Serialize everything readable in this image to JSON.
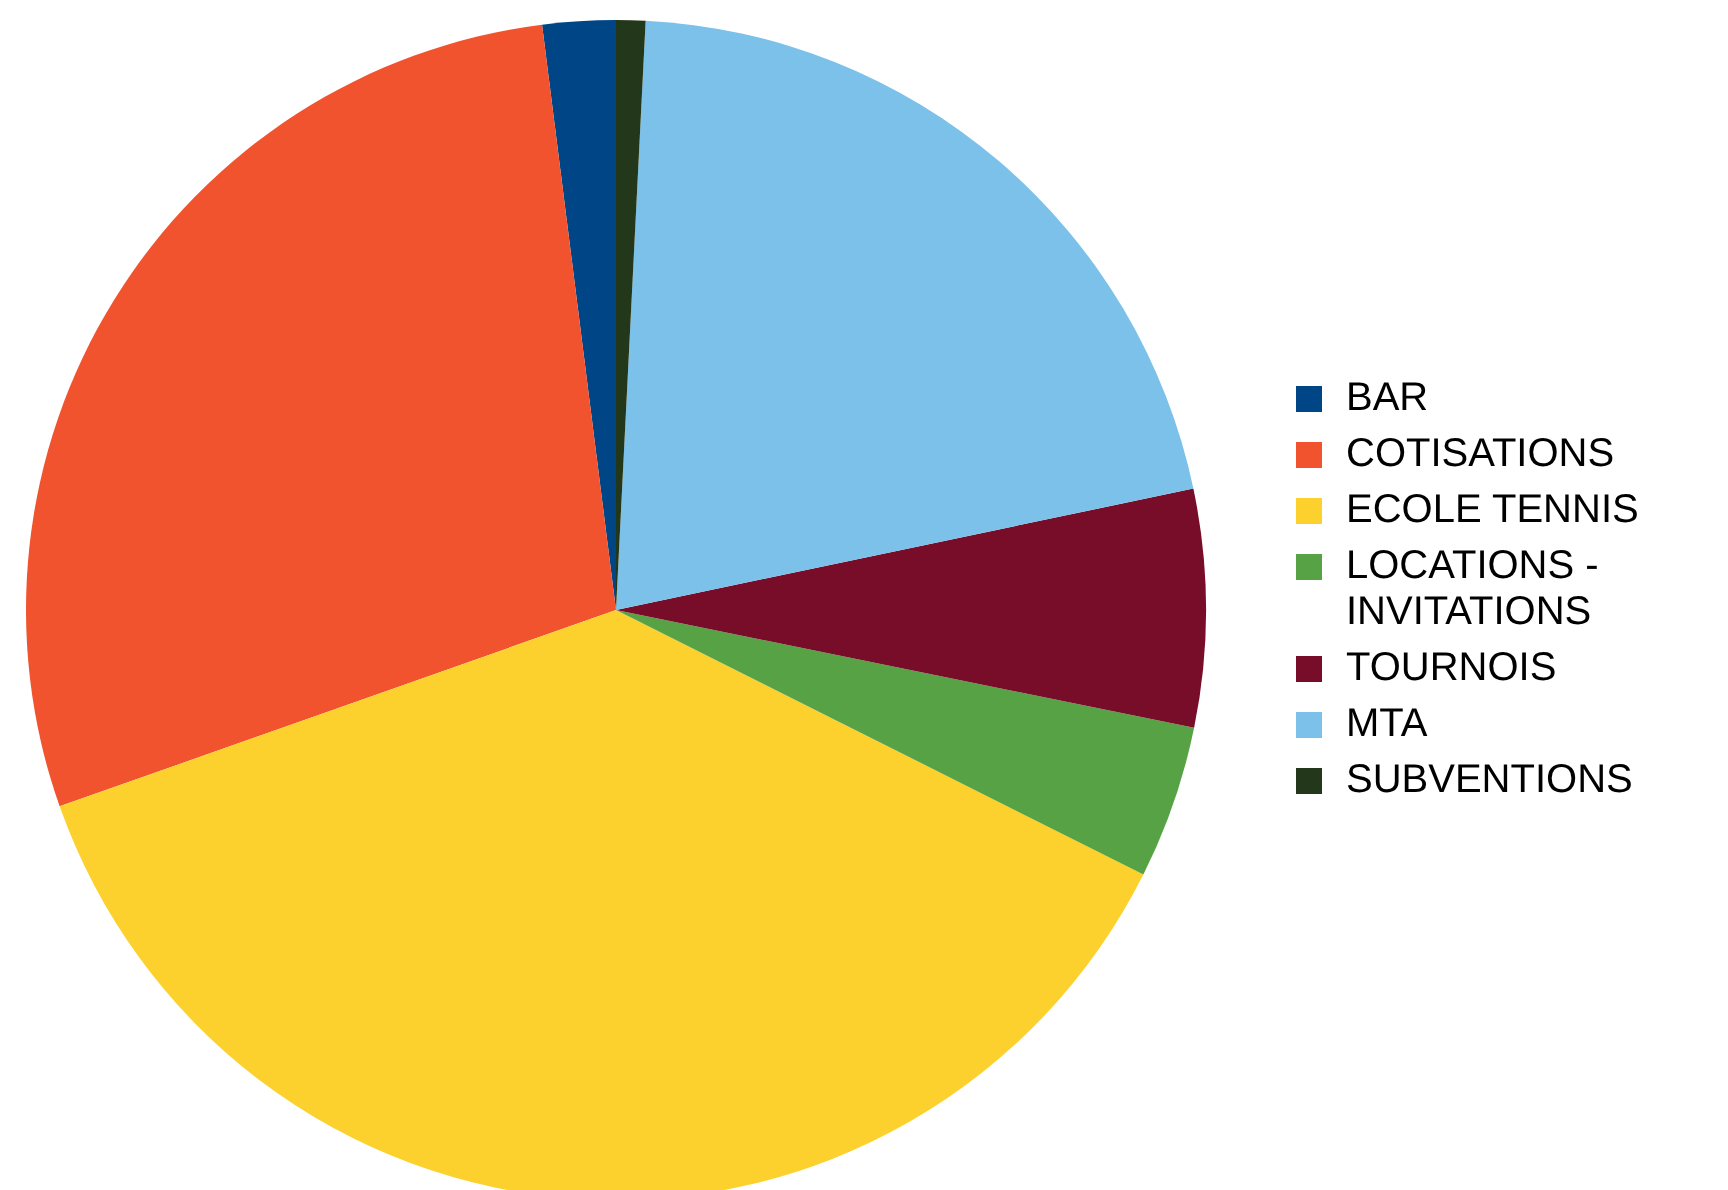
{
  "chart_data": {
    "type": "pie",
    "categories": [
      "BAR",
      "COTISATIONS",
      "ECOLE TENNIS",
      "LOCATIONS -INVITATIONS",
      "TOURNOIS",
      "MTA",
      "SUBVENTIONS"
    ],
    "values": [
      2.0,
      28.4,
      37.2,
      4.2,
      6.5,
      20.9,
      0.8
    ],
    "colors": [
      "#004586",
      "#f0532d",
      "#fcd12e",
      "#56a244",
      "#770d28",
      "#7bc1ea",
      "#23381a"
    ],
    "legend": "right"
  }
}
